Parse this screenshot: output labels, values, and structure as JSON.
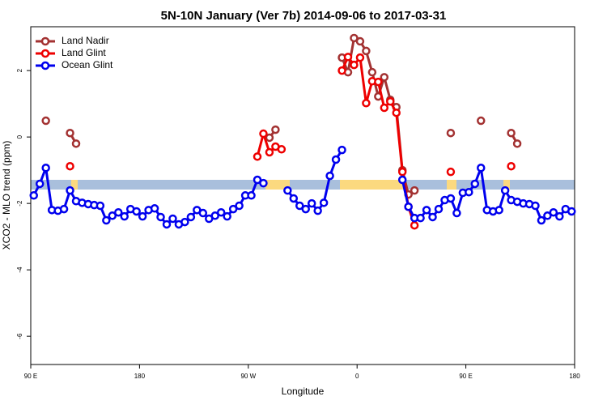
{
  "chart_data": {
    "type": "line",
    "title": "5N-10N January (Ver 7b)   2014-09-06 to 2017-03-31",
    "x_label": "Longitude",
    "y_label": "XCO2 - MLO trend (ppm)",
    "xlim": [
      90,
      540
    ],
    "ylim": [
      -6.85,
      3.32
    ],
    "xticks": [
      {
        "value": 90,
        "label": "90 E"
      },
      180,
      {
        "value": 270,
        "label": "90 W"
      },
      {
        "value": 360,
        "label": "0"
      },
      {
        "value": 450,
        "label": "90 E"
      },
      {
        "value": 540,
        "label": "180"
      }
    ],
    "yticks": [
      -6,
      -4,
      -2,
      0,
      2
    ],
    "legend": "top-left",
    "x": [
      92.5,
      97.5,
      102.5,
      107.5,
      112.5,
      117.5,
      122.5,
      127.5,
      132.5,
      137.5,
      142.5,
      147.5,
      152.5,
      157.5,
      162.5,
      167.5,
      172.5,
      177.5,
      182.5,
      187.5,
      192.5,
      197.5,
      202.5,
      207.5,
      212.5,
      217.5,
      222.5,
      227.5,
      232.5,
      237.5,
      242.5,
      247.5,
      252.5,
      257.5,
      262.5,
      267.5,
      272.5,
      277.5,
      282.5,
      287.5,
      292.5,
      297.5,
      302.5,
      307.5,
      312.5,
      317.5,
      322.5,
      327.5,
      332.5,
      337.5,
      342.5,
      347.5,
      352.5,
      357.5,
      362.5,
      367.5,
      372.5,
      377.5,
      382.5,
      387.5,
      392.5,
      397.5,
      402.5,
      407.5,
      412.5,
      417.5,
      422.5,
      427.5,
      432.5,
      437.5,
      442.5,
      447.5,
      452.5,
      457.5,
      462.5,
      467.5,
      472.5,
      477.5,
      482.5,
      487.5,
      492.5,
      497.5,
      502.5,
      507.5,
      512.5,
      517.5,
      522.5,
      527.5,
      532.5,
      537.5
    ],
    "series": [
      {
        "name": "Land Nadir",
        "color": "#a33232",
        "values": [
          null,
          null,
          0.49,
          null,
          null,
          null,
          0.12,
          -0.2,
          null,
          null,
          null,
          null,
          null,
          null,
          null,
          null,
          null,
          null,
          null,
          null,
          null,
          null,
          null,
          null,
          null,
          null,
          null,
          null,
          null,
          null,
          null,
          null,
          null,
          null,
          null,
          null,
          null,
          null,
          null,
          -0.02,
          0.22,
          null,
          null,
          null,
          null,
          null,
          null,
          null,
          null,
          null,
          null,
          2.39,
          1.95,
          2.98,
          2.88,
          2.59,
          1.95,
          1.22,
          1.8,
          1.12,
          0.9,
          -1.0,
          -1.73,
          -1.61,
          null,
          null,
          null,
          null,
          null,
          0.12,
          null,
          null,
          null,
          null,
          0.49,
          null,
          null,
          null,
          null,
          0.12,
          -0.2,
          null,
          null,
          null,
          null,
          null,
          null,
          null,
          null,
          null
        ]
      },
      {
        "name": "Land Glint",
        "color": "#ee0000",
        "values": [
          null,
          null,
          null,
          null,
          null,
          null,
          -0.88,
          null,
          null,
          null,
          null,
          null,
          null,
          null,
          null,
          null,
          null,
          null,
          null,
          null,
          null,
          null,
          null,
          null,
          null,
          null,
          null,
          null,
          null,
          null,
          null,
          null,
          null,
          null,
          null,
          null,
          null,
          -0.59,
          0.1,
          -0.46,
          -0.29,
          -0.37,
          null,
          null,
          null,
          null,
          null,
          null,
          null,
          null,
          null,
          2.0,
          2.41,
          2.17,
          2.39,
          1.02,
          1.68,
          1.66,
          0.88,
          1.07,
          0.73,
          -1.05,
          -2.1,
          -2.66,
          null,
          null,
          null,
          null,
          null,
          -1.05,
          null,
          null,
          null,
          null,
          null,
          null,
          null,
          null,
          null,
          -0.88,
          null,
          null,
          null,
          null,
          null,
          null,
          null,
          null,
          null,
          null
        ]
      },
      {
        "name": "Ocean Glint",
        "color": "#0000ee",
        "values": [
          -1.76,
          -1.41,
          -0.93,
          -2.2,
          -2.22,
          -2.17,
          -1.61,
          -1.93,
          -1.98,
          -2.02,
          -2.05,
          -2.07,
          -2.51,
          -2.37,
          -2.27,
          -2.39,
          -2.17,
          -2.24,
          -2.39,
          -2.2,
          -2.15,
          -2.41,
          -2.63,
          -2.46,
          -2.63,
          -2.56,
          -2.41,
          -2.2,
          -2.29,
          -2.46,
          -2.37,
          -2.27,
          -2.39,
          -2.17,
          -2.07,
          -1.76,
          -1.76,
          -1.29,
          -1.39,
          null,
          null,
          null,
          -1.61,
          -1.85,
          -2.07,
          -2.17,
          -2.0,
          -2.22,
          -1.98,
          -1.17,
          -0.68,
          -0.39,
          null,
          null,
          null,
          null,
          null,
          null,
          null,
          null,
          null,
          -1.29,
          -2.1,
          -2.44,
          -2.44,
          -2.2,
          -2.41,
          -2.17,
          -1.9,
          -1.85,
          -2.29,
          -1.68,
          -1.66,
          -1.41,
          -0.93,
          -2.2,
          -2.24,
          -2.2,
          -1.61,
          -1.9,
          -1.95,
          -2.0,
          -2.02,
          -2.07,
          -2.51,
          -2.37,
          -2.27,
          -2.39,
          -2.17,
          -2.24
        ]
      }
    ]
  }
}
